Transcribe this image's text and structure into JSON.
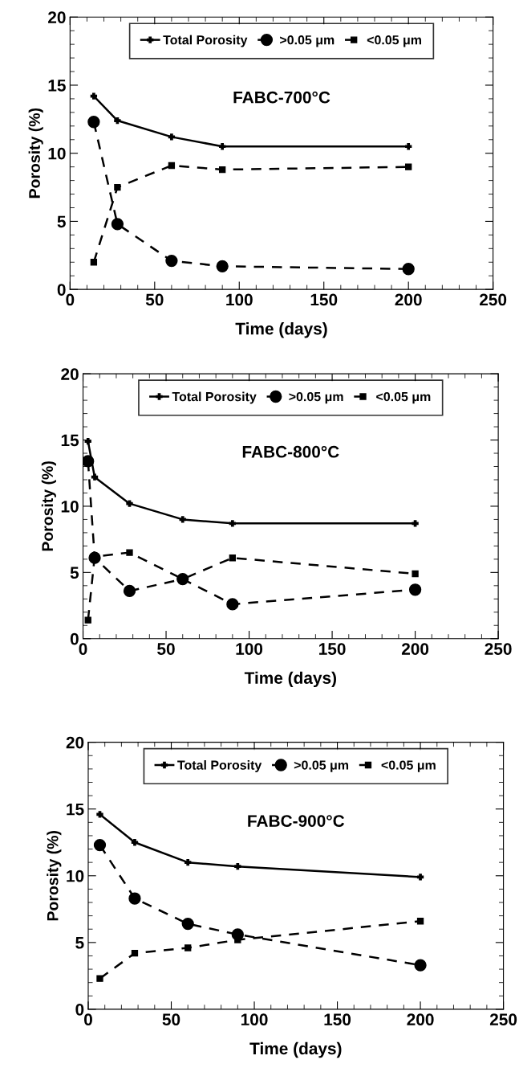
{
  "chart_data": [
    {
      "type": "line",
      "annotations": [
        "FABC-700°C"
      ],
      "xlabel": "Time (days)",
      "ylabel": "Porosity (%)",
      "x": [
        14,
        28,
        60,
        90,
        200
      ],
      "series": [
        {
          "name": "Total Porosity",
          "color": "#000000",
          "marker": "cross",
          "line_style": "solid",
          "values": [
            14.2,
            12.4,
            11.2,
            10.5,
            10.5
          ]
        },
        {
          "name": ">0.05 μm",
          "color": "#000000",
          "marker": "circle",
          "line_style": "dashed",
          "values": [
            12.3,
            4.8,
            2.1,
            1.7,
            1.5
          ]
        },
        {
          "name": "<0.05 μm",
          "color": "#000000",
          "marker": "square",
          "line_style": "dashed",
          "values": [
            2.0,
            7.5,
            9.1,
            8.8,
            9.0
          ]
        }
      ],
      "xlim": [
        0,
        250
      ],
      "xticks": [
        0,
        50,
        100,
        150,
        200,
        250
      ],
      "ylim": [
        0,
        20
      ],
      "yticks": [
        0,
        5,
        10,
        15,
        20
      ],
      "legend": "top",
      "grid": false
    },
    {
      "type": "line",
      "annotations": [
        "FABC-800°C"
      ],
      "xlabel": "Time (days)",
      "ylabel": "Porosity (%)",
      "x": [
        3,
        7,
        28,
        60,
        90,
        200
      ],
      "series": [
        {
          "name": "Total Porosity",
          "color": "#000000",
          "marker": "cross",
          "line_style": "solid",
          "values": [
            14.9,
            12.2,
            10.2,
            9.0,
            8.7,
            8.7
          ]
        },
        {
          "name": ">0.05 μm",
          "color": "#000000",
          "marker": "circle",
          "line_style": "dashed",
          "values": [
            13.4,
            6.1,
            3.6,
            4.5,
            2.6,
            3.7
          ]
        },
        {
          "name": "<0.05 μm",
          "color": "#000000",
          "marker": "square",
          "line_style": "dashed",
          "values": [
            1.4,
            6.2,
            6.5,
            4.5,
            6.1,
            4.9
          ]
        }
      ],
      "xlim": [
        0,
        250
      ],
      "xticks": [
        0,
        50,
        100,
        150,
        200,
        250
      ],
      "ylim": [
        0,
        20
      ],
      "yticks": [
        0,
        5,
        10,
        15,
        20
      ],
      "legend": "top",
      "grid": false
    },
    {
      "type": "line",
      "annotations": [
        "FABC-900°C"
      ],
      "xlabel": "Time (days)",
      "ylabel": "Porosity (%)",
      "x": [
        7,
        28,
        60,
        90,
        200
      ],
      "series": [
        {
          "name": "Total Porosity",
          "color": "#000000",
          "marker": "cross",
          "line_style": "solid",
          "values": [
            14.6,
            12.5,
            11.0,
            10.7,
            9.9
          ]
        },
        {
          "name": ">0.05 μm",
          "color": "#000000",
          "marker": "circle",
          "line_style": "dashed",
          "values": [
            12.3,
            8.3,
            6.4,
            5.6,
            3.3
          ]
        },
        {
          "name": "<0.05 μm",
          "color": "#000000",
          "marker": "square",
          "line_style": "dashed",
          "values": [
            2.3,
            4.2,
            4.6,
            5.2,
            6.6
          ]
        }
      ],
      "xlim": [
        0,
        250
      ],
      "xticks": [
        0,
        50,
        100,
        150,
        200,
        250
      ],
      "ylim": [
        0,
        20
      ],
      "yticks": [
        0,
        5,
        10,
        15,
        20
      ],
      "legend": "top",
      "grid": false
    }
  ]
}
